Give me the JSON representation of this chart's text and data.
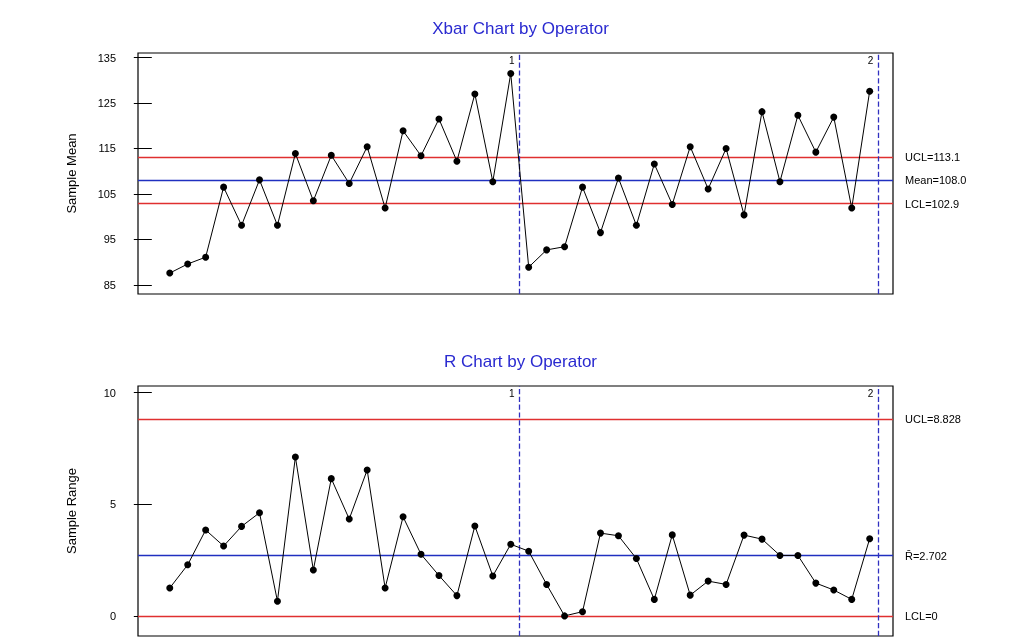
{
  "chart_data": [
    {
      "type": "line",
      "title": "Xbar Chart by Operator",
      "ylabel": "Sample Mean",
      "marker": "circle",
      "categories": [
        null,
        null,
        null,
        null,
        null,
        null,
        null,
        null,
        null,
        null,
        null,
        null,
        null,
        null,
        null,
        null,
        null,
        null,
        null,
        null,
        null,
        null,
        null,
        null,
        null,
        null,
        null,
        null,
        null,
        null,
        null,
        null,
        null,
        null,
        null,
        null,
        null,
        null,
        null,
        null
      ],
      "series": [
        {
          "color": "#000000",
          "values": [
            87.6,
            89.6,
            91.1,
            106.5,
            98.1,
            108.1,
            98.1,
            113.9,
            103.5,
            113.5,
            107.3,
            115.4,
            101.9,
            118.9,
            113.4,
            121.5,
            112.2,
            127.0,
            107.7,
            131.5,
            88.9,
            92.7,
            93.4,
            106.5,
            96.5,
            108.5,
            98.1,
            111.6,
            102.7,
            115.4,
            106.1,
            115.0,
            100.4,
            123.1,
            107.7,
            122.3,
            114.2,
            121.9,
            101.9,
            127.6
          ]
        }
      ],
      "ylim": [
        83,
        136
      ],
      "yticks": [
        85,
        95,
        105,
        115,
        125,
        135
      ],
      "ref_lines": [
        {
          "axis": "y",
          "value": 113.1,
          "label": "UCL=113.1",
          "color": "#e03030"
        },
        {
          "axis": "y",
          "value": 108.0,
          "label": "Mean=108.0",
          "color": "#2030c0"
        },
        {
          "axis": "y",
          "value": 102.9,
          "label": "LCL=102.9",
          "color": "#e03030"
        }
      ],
      "annotations": [
        "1",
        "2"
      ]
    },
    {
      "type": "line",
      "title": "R Chart by Operator",
      "ylabel": "Sample Range",
      "marker": "circle",
      "categories": [
        null,
        null,
        null,
        null,
        null,
        null,
        null,
        null,
        null,
        null,
        null,
        null,
        null,
        null,
        null,
        null,
        null,
        null,
        null,
        null,
        null,
        null,
        null,
        null,
        null,
        null,
        null,
        null,
        null,
        null,
        null,
        null,
        null,
        null,
        null,
        null,
        null,
        null,
        null,
        null
      ],
      "series": [
        {
          "color": "#000000",
          "values": [
            1.25,
            2.29,
            3.85,
            3.13,
            4.01,
            4.62,
            0.66,
            7.12,
            2.06,
            6.15,
            4.34,
            6.54,
            1.25,
            4.44,
            2.76,
            1.81,
            0.91,
            4.03,
            1.79,
            3.21,
            2.9,
            1.41,
            0.0,
            0.19,
            3.71,
            3.59,
            2.57,
            0.74,
            3.63,
            0.93,
            1.56,
            1.41,
            3.62,
            3.44,
            2.71,
            2.71,
            1.47,
            1.16,
            0.74,
            3.46
          ]
        }
      ],
      "ylim": [
        -0.9,
        10.3
      ],
      "yticks": [
        0,
        5,
        10
      ],
      "ref_lines": [
        {
          "axis": "y",
          "value": 8.828,
          "label": "UCL=8.828",
          "color": "#e03030"
        },
        {
          "axis": "y",
          "value": 2.702,
          "label": "R̄=2.702",
          "color": "#2030c0"
        },
        {
          "axis": "y",
          "value": 0,
          "label": "LCL=0",
          "color": "#e03030"
        }
      ],
      "annotations": [
        "1",
        "2"
      ]
    }
  ]
}
